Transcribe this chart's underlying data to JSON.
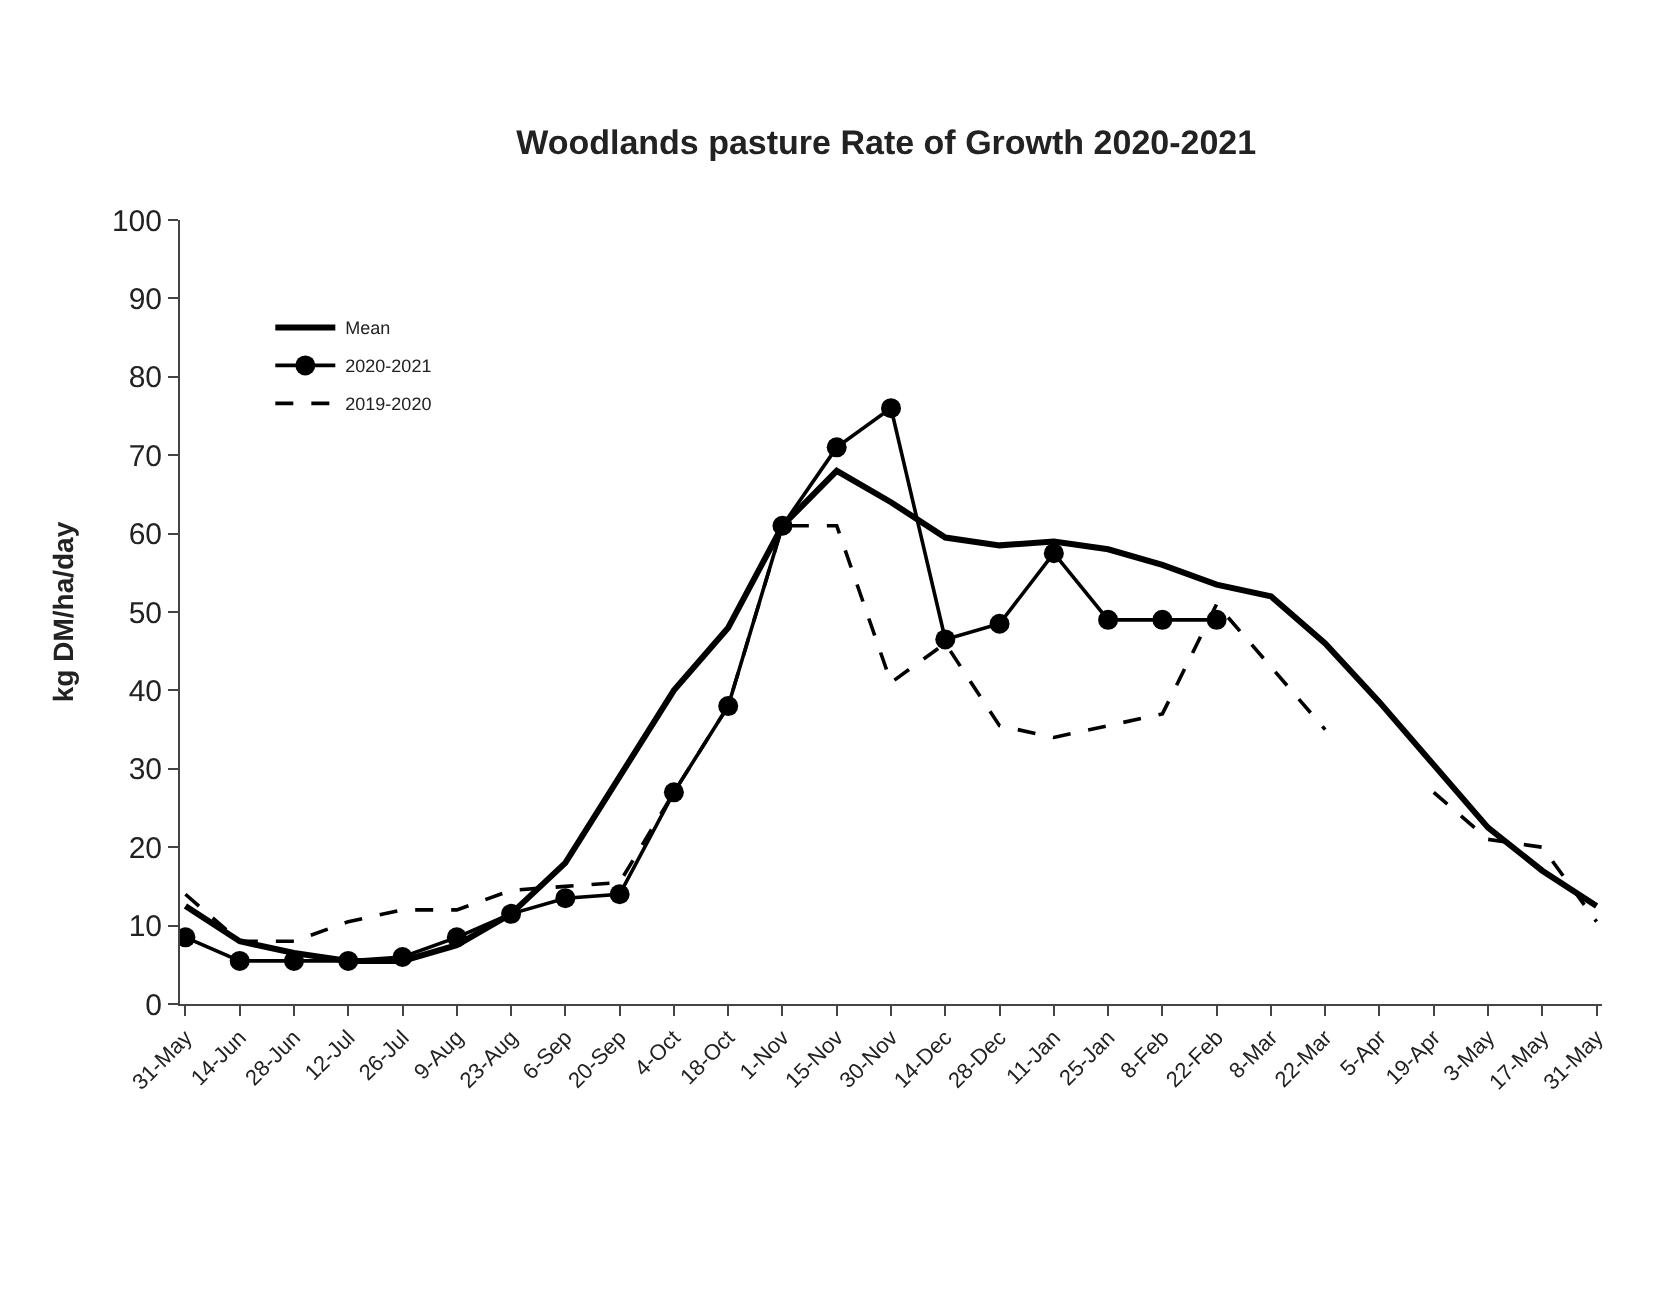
{
  "chart_data": {
    "type": "line",
    "title": "Woodlands pasture Rate of Growth 2020-2021",
    "ylabel": "kg DM/ha/day",
    "categories": [
      "31-May",
      "14-Jun",
      "28-Jun",
      "12-Jul",
      "26-Jul",
      "9-Aug",
      "23-Aug",
      "6-Sep",
      "20-Sep",
      "4-Oct",
      "18-Oct",
      "1-Nov",
      "15-Nov",
      "30-Nov",
      "14-Dec",
      "28-Dec",
      "11-Jan",
      "25-Jan",
      "8-Feb",
      "22-Feb",
      "8-Mar",
      "22-Mar",
      "5-Apr",
      "19-Apr",
      "3-May",
      "17-May",
      "31-May"
    ],
    "series": [
      {
        "name": "Mean",
        "color": "#000000",
        "line_style": "solid",
        "marker": "none",
        "values": [
          12.5,
          8,
          6.5,
          5.5,
          5.5,
          7.5,
          11.5,
          18,
          29,
          40,
          48,
          61,
          68,
          64,
          59.5,
          58.5,
          59,
          58,
          56,
          53.5,
          52,
          46,
          38.5,
          30.5,
          22.5,
          17,
          12.5
        ]
      },
      {
        "name": "2020-2021",
        "color": "#000000",
        "line_style": "solid",
        "marker": "circle",
        "values": [
          8.5,
          5.5,
          5.5,
          5.5,
          6,
          8.5,
          11.5,
          13.5,
          14,
          27,
          38,
          61,
          71,
          76,
          46.5,
          48.5,
          57.5,
          49,
          49,
          49,
          null,
          null,
          null,
          null,
          null,
          null,
          null
        ]
      },
      {
        "name": "2019-2020",
        "color": "#000000",
        "line_style": "dashed",
        "marker": "none",
        "values": [
          14,
          8,
          8,
          10.5,
          12,
          12,
          14.5,
          15,
          15.5,
          27,
          38,
          61,
          61,
          41,
          46,
          35.5,
          34,
          35.5,
          37,
          51,
          43,
          35,
          null,
          27,
          21,
          20,
          10.5
        ]
      }
    ],
    "ylim": [
      0,
      100
    ],
    "yticks": [
      0,
      10,
      20,
      30,
      40,
      50,
      60,
      70,
      80,
      90,
      100
    ],
    "legend": "top left"
  }
}
